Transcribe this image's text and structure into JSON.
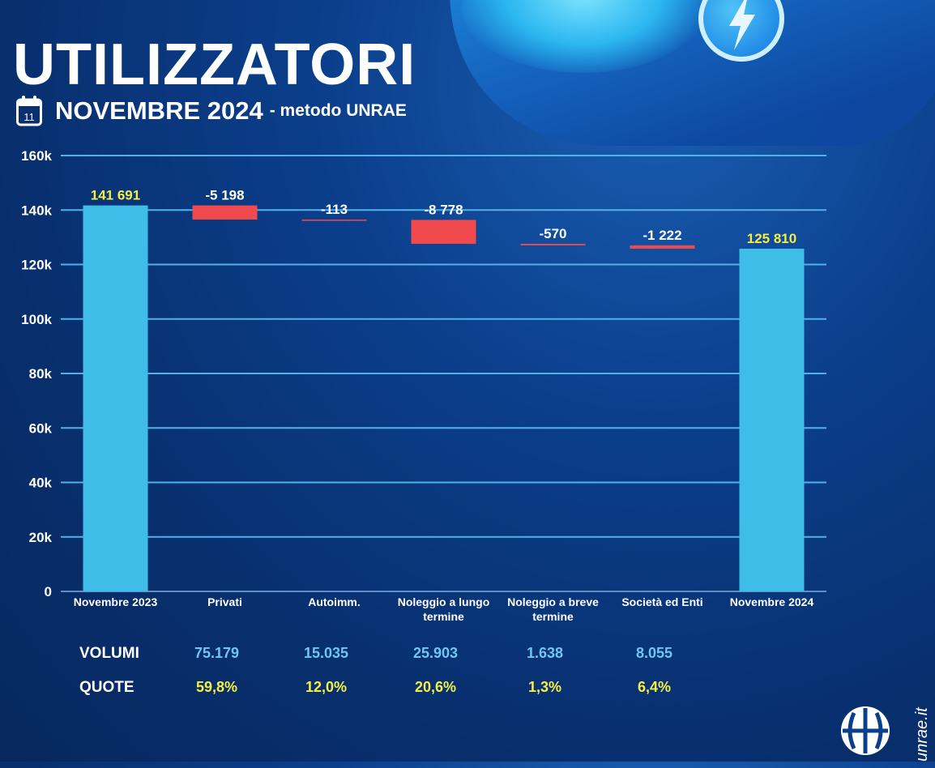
{
  "header": {
    "title": "UTILIZZATORI",
    "subtitle": "NOVEMBRE 2024",
    "method": "- metodo UNRAE",
    "calendar_day": "11"
  },
  "chart_data": {
    "type": "bar",
    "subtype": "waterfall",
    "categories": [
      "Novembre 2023",
      "Privati",
      "Autoimm.",
      "Noleggio a lungo termine",
      "Noleggio a breve termine",
      "Società ed Enti",
      "Novembre 2024"
    ],
    "values": [
      141691,
      -5198,
      -113,
      -8778,
      -570,
      -1222,
      125810
    ],
    "value_labels": [
      "141 691",
      "-5 198",
      "-113",
      "-8 778",
      "-570",
      "-1 222",
      "125 810"
    ],
    "ylim": [
      0,
      160000
    ],
    "yticks": [
      "0",
      "20k",
      "40k",
      "60k",
      "80k",
      "100k",
      "120k",
      "140k",
      "160k"
    ],
    "grid": true,
    "colors": {
      "total": "#3dbde8",
      "decrease": "#f04a4f",
      "total_label": "#f4ee45",
      "change_label": "#ffffff",
      "grid": "#4fb3ea"
    }
  },
  "table": {
    "volumi_label": "VOLUMI",
    "quote_label": "QUOTE",
    "volumi": [
      "75.179",
      "15.035",
      "25.903",
      "1.638",
      "8.055"
    ],
    "quote": [
      "59,8%",
      "12,0%",
      "20,6%",
      "1,3%",
      "6,4%"
    ]
  },
  "footer": {
    "site": "unrae.it"
  }
}
